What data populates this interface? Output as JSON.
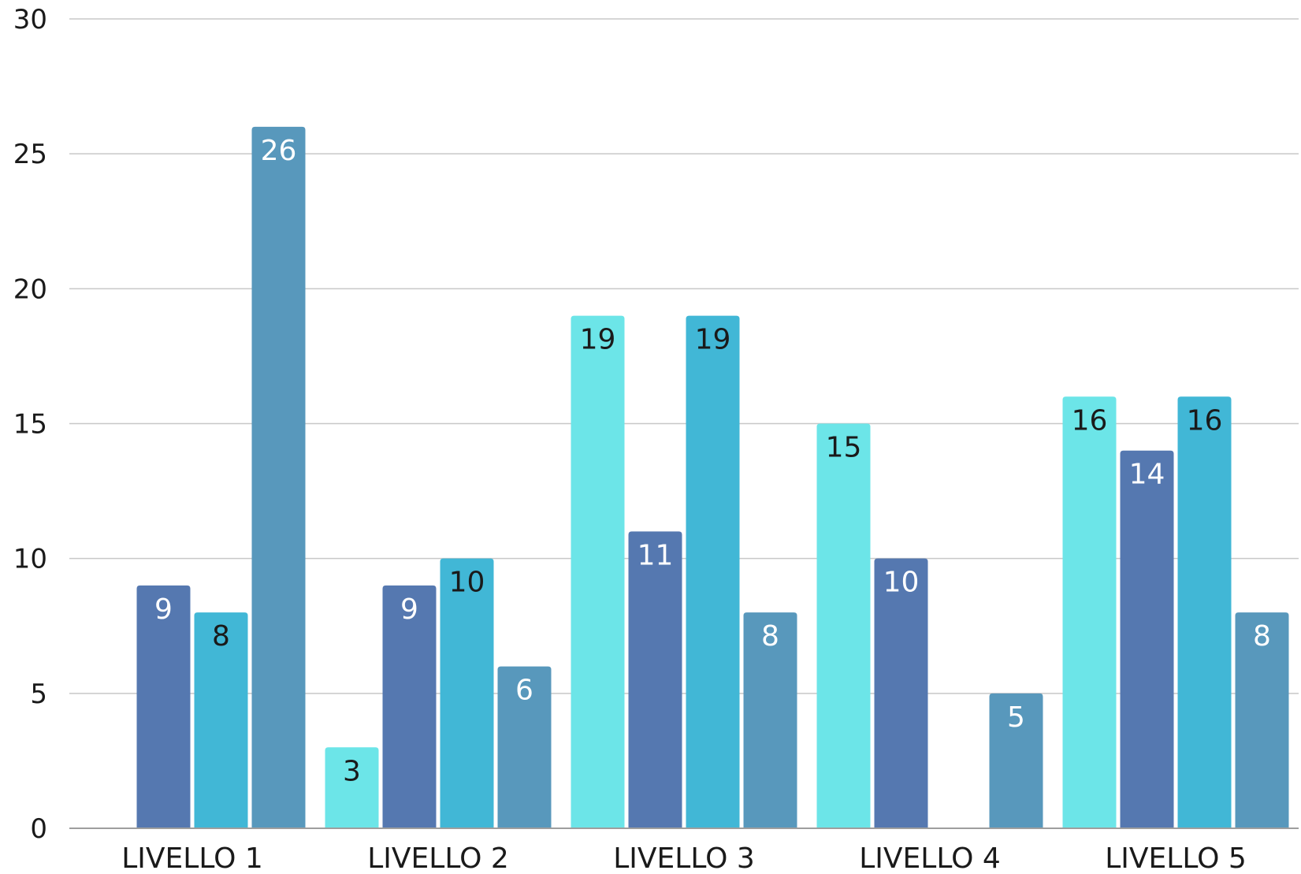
{
  "chart_data": {
    "type": "bar",
    "title": "",
    "xlabel": "",
    "ylabel": "",
    "ylim": [
      0,
      30
    ],
    "yticks": [
      0,
      5,
      10,
      15,
      20,
      25,
      30
    ],
    "grid": true,
    "legend": "none",
    "categories": [
      "LIVELLO 1",
      "LIVELLO 2",
      "LIVELLO 3",
      "LIVELLO 4",
      "LIVELLO 5"
    ],
    "series": [
      {
        "color": "#6ce5e8",
        "label_color": "#1a1a1a",
        "values": [
          null,
          3,
          19,
          15,
          16
        ]
      },
      {
        "color": "#5578b0",
        "label_color": "#ffffff",
        "values": [
          9,
          9,
          11,
          10,
          14
        ]
      },
      {
        "color": "#41b7d6",
        "label_color": "#1a1a1a",
        "values": [
          8,
          10,
          19,
          null,
          16
        ]
      },
      {
        "color": "#5898bc",
        "label_color": "#ffffff",
        "values": [
          26,
          6,
          8,
          5,
          8
        ]
      }
    ]
  }
}
